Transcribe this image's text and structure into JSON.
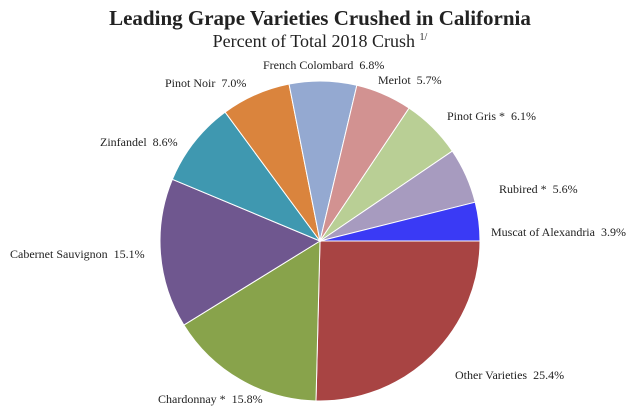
{
  "chart_data": {
    "type": "pie",
    "title": "Leading Grape Varieties Crushed in California",
    "subtitle": "Percent of Total 2018 Crush",
    "footnote_marker": "1/",
    "start": "3 o'clock, clockwise",
    "slices": [
      {
        "label": "Other Varieties",
        "value": 25.4,
        "text": "25.4%",
        "color": "#a84443"
      },
      {
        "label": "Chardonnay *",
        "value": 15.8,
        "text": "15.8%",
        "color": "#88a34b"
      },
      {
        "label": "Cabernet Sauvignon",
        "value": 15.1,
        "text": "15.1%",
        "color": "#6f578f"
      },
      {
        "label": "Zinfandel",
        "value": 8.6,
        "text": "8.6%",
        "color": "#3f98b0"
      },
      {
        "label": "Pinot Noir",
        "value": 7.0,
        "text": "7.0%",
        "color": "#da843d"
      },
      {
        "label": "French Colombard",
        "value": 6.8,
        "text": "6.8%",
        "color": "#94a9d1"
      },
      {
        "label": "Merlot",
        "value": 5.7,
        "text": "5.7%",
        "color": "#d29291"
      },
      {
        "label": "Pinot Gris *",
        "value": 6.1,
        "text": "6.1%",
        "color": "#b9cf95"
      },
      {
        "label": "Rubired *",
        "value": 5.6,
        "text": "5.6%",
        "color": "#a79bbf"
      },
      {
        "label": "Muscat of Alexandria",
        "value": 3.9,
        "text": "3.9%",
        "color": "#3a3af5"
      }
    ]
  }
}
